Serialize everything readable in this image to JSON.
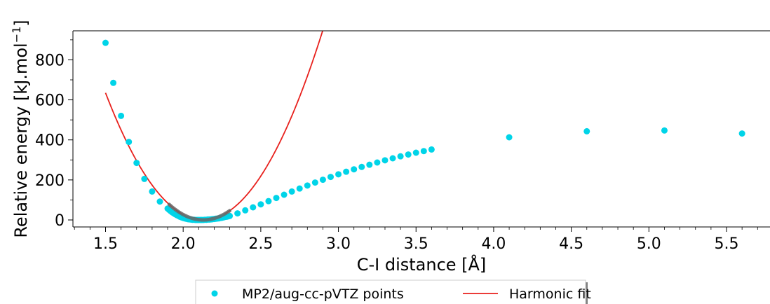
{
  "chart_data": {
    "type": "scatter",
    "xlabel": "C-I distance [Å]",
    "ylabel_main": "Relative energy [kJ.mol",
    "ylabel_sup": "−1",
    "ylabel_close": "]",
    "xlim": [
      1.29,
      5.78
    ],
    "ylim": [
      -35,
      945
    ],
    "xticks": [
      1.5,
      2.0,
      2.5,
      3.0,
      3.5,
      4.0,
      4.5,
      5.0,
      5.5
    ],
    "xtick_labels": [
      "1.5",
      "2.0",
      "2.5",
      "3.0",
      "3.5",
      "4.0",
      "4.5",
      "5.0",
      "5.5"
    ],
    "yticks": [
      0,
      200,
      400,
      600,
      800
    ],
    "ytick_labels": [
      "0",
      "200",
      "400",
      "600",
      "800"
    ],
    "x_minor_step": 0.1,
    "y_minor_step": 100,
    "legend_position": "bottom-center, outside",
    "series": [
      {
        "name": "MP2/aug-cc-pVTZ points",
        "kind": "scatter",
        "color": "#00d4e8",
        "x": [
          1.5,
          1.55,
          1.6,
          1.65,
          1.7,
          1.75,
          1.8,
          1.85,
          1.9,
          1.91,
          1.92,
          1.93,
          1.94,
          1.95,
          1.96,
          1.97,
          1.98,
          1.99,
          2.0,
          2.01,
          2.02,
          2.03,
          2.04,
          2.05,
          2.06,
          2.07,
          2.08,
          2.09,
          2.1,
          2.11,
          2.12,
          2.13,
          2.14,
          2.15,
          2.16,
          2.17,
          2.18,
          2.19,
          2.2,
          2.21,
          2.22,
          2.23,
          2.24,
          2.25,
          2.26,
          2.27,
          2.28,
          2.29,
          2.3,
          2.35,
          2.4,
          2.45,
          2.5,
          2.55,
          2.6,
          2.65,
          2.7,
          2.75,
          2.8,
          2.85,
          2.9,
          2.95,
          3.0,
          3.05,
          3.1,
          3.15,
          3.2,
          3.25,
          3.3,
          3.35,
          3.4,
          3.45,
          3.5,
          3.55,
          3.6,
          4.1,
          4.6,
          5.1,
          5.6
        ],
        "y": [
          885,
          685,
          520,
          390,
          285,
          205,
          142,
          92,
          57,
          50,
          44,
          38,
          33,
          28,
          24,
          20,
          16,
          13,
          10,
          8,
          6,
          4,
          3,
          2,
          1,
          1,
          0,
          0,
          0,
          0,
          0,
          0,
          1,
          1,
          2,
          2,
          3,
          4,
          5,
          6,
          7,
          8,
          10,
          11,
          13,
          15,
          16,
          18,
          20,
          33,
          48,
          63,
          78,
          94,
          110,
          126,
          142,
          157,
          172,
          187,
          201,
          215,
          228,
          241,
          253,
          265,
          276,
          287,
          298,
          308,
          318,
          327,
          336,
          344,
          352,
          413,
          443,
          447,
          432
        ]
      },
      {
        "name": "Harmonic fit",
        "kind": "line",
        "color": "#e8211d",
        "x0": 2.13,
        "k": 1600,
        "x_start": 1.5,
        "x_end": 3.25
      }
    ],
    "grey_overlay": {
      "color": "#666666",
      "x_start": 1.91,
      "x_end": 2.3
    }
  }
}
